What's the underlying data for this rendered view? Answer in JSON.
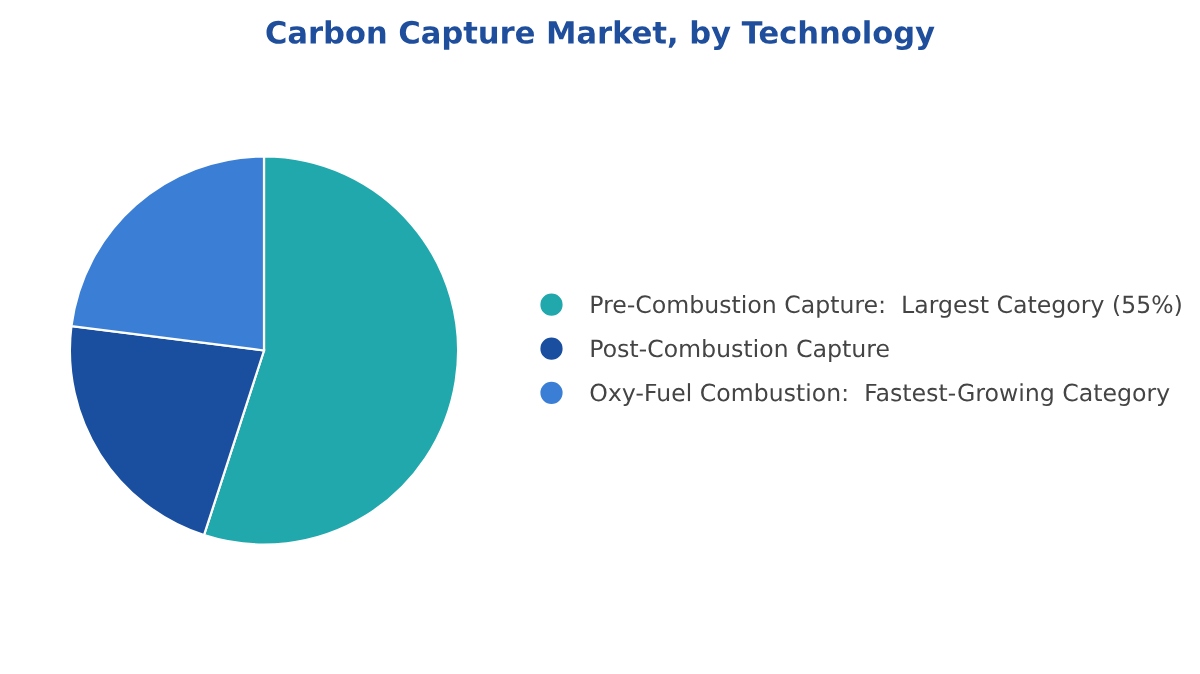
{
  "chart_data": {
    "type": "pie",
    "title": "Carbon Capture Market, by Technology",
    "categories": [
      "Pre-Combustion Capture:  Largest Category (55%)",
      "Post-Combustion Capture",
      "Oxy-Fuel Combustion:  Fastest-Growing Category"
    ],
    "values": [
      55,
      22,
      23
    ],
    "colors": [
      "#21a8ad",
      "#1a4fa0",
      "#3a7fd5"
    ],
    "legend": "right"
  }
}
